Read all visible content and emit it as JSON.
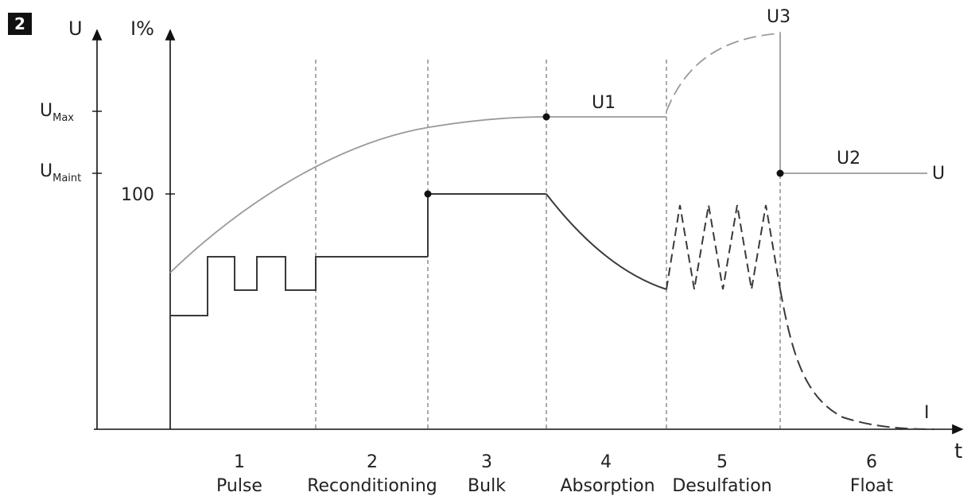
{
  "badge": "2",
  "chart_data": {
    "type": "line",
    "title": "",
    "x_axis_label": "t",
    "y_axis_left_label": "U",
    "y_axis_right_label": "I%",
    "y_ticks": [
      {
        "label": "U",
        "sub": "Max",
        "value": "U_Max"
      },
      {
        "label": "U",
        "sub": "Maint",
        "value": "U_Maint"
      },
      {
        "label": "100",
        "sub": "",
        "value": 100
      }
    ],
    "phases": [
      {
        "number": "1",
        "name": "Pulse"
      },
      {
        "number": "2",
        "name": "Reconditioning"
      },
      {
        "number": "3",
        "name": "Bulk"
      },
      {
        "number": "4",
        "name": "Absorption"
      },
      {
        "number": "5",
        "name": "Desulfation"
      },
      {
        "number": "6",
        "name": "Float"
      }
    ],
    "annotations": [
      "U1",
      "U2",
      "U3"
    ],
    "series": [
      {
        "name": "U",
        "description": "voltage curve"
      },
      {
        "name": "I",
        "description": "current curve"
      }
    ],
    "colors": {
      "voltage": "#9a9a9a",
      "current": "#3a3a3a",
      "axes": "#111111",
      "dividers": "#555555"
    }
  }
}
